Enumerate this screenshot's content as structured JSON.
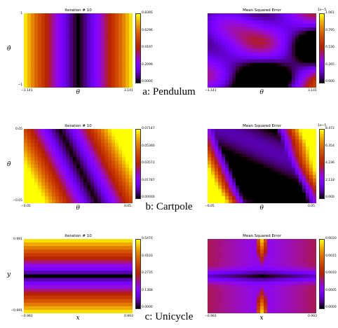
{
  "rows": [
    {
      "caption": "a: Pendulum",
      "ylabel": "θ̇",
      "xlabel": "θ",
      "left": {
        "title": "Iteration # 10",
        "xticks": [
          "−3.141",
          "3.141"
        ],
        "yticks": [
          "1",
          "−1"
        ],
        "cbar_ticks": [
          "0.8395",
          "0.6296",
          "0.4197",
          "0.2099",
          "0.0000"
        ]
      },
      "right": {
        "title": "Mean Squared Error",
        "xticks": [
          "−3.141",
          "3.141"
        ],
        "cbar_offset": "1e−5",
        "cbar_ticks": [
          "1.061",
          "0.795",
          "0.530",
          "0.265",
          "0.000"
        ]
      }
    },
    {
      "caption": "b: Cartpole",
      "ylabel": "θ̇",
      "xlabel": "θ",
      "left": {
        "title": "Iteration # 10",
        "xticks": [
          "−0.05",
          "0.05"
        ],
        "yticks": [
          "0.05",
          "−0.05"
        ],
        "cbar_ticks": [
          "0.07147",
          "0.05360",
          "0.03573",
          "0.01787",
          "0.00000"
        ]
      },
      "right": {
        "title": "Mean Squared Error",
        "xticks": [
          "−0.05",
          "0.05"
        ],
        "cbar_offset": "1e−5",
        "cbar_ticks": [
          "8.472",
          "6.354",
          "4.236",
          "2.118",
          "0.000"
        ]
      }
    },
    {
      "caption": "c: Unicycle",
      "ylabel": "y",
      "xlabel": "x",
      "left": {
        "title": "Iteration # 10",
        "xticks": [
          "−0.993",
          "0.993"
        ],
        "yticks": [
          "0.991",
          "−0.991"
        ],
        "cbar_ticks": [
          "0.5470",
          "0.4103",
          "0.2735",
          "0.1368",
          "0.0000"
        ]
      },
      "right": {
        "title": "Mean Squared Error",
        "xticks": [
          "−0.993",
          "0.993"
        ],
        "cbar_ticks": [
          "0.0020",
          "0.0015",
          "0.0010",
          "0.0005",
          "0.0000"
        ]
      }
    }
  ],
  "chart_data": [
    {
      "type": "heatmap",
      "title": "Iteration # 10",
      "xlabel": "θ",
      "ylabel": "θ̇",
      "xlim": [
        -3.141,
        3.141
      ],
      "ylim": [
        -1,
        1
      ],
      "colorbar_range": [
        0.0,
        0.8395
      ],
      "colormap": "gnuplot",
      "pattern": "value depends on θ, minimum near θ=0"
    },
    {
      "type": "heatmap",
      "title": "Mean Squared Error",
      "xlabel": "θ",
      "xlim": [
        -3.141,
        3.141
      ],
      "colorbar_range": [
        0.0,
        1.061e-05
      ],
      "colormap": "gnuplot"
    },
    {
      "type": "heatmap",
      "title": "Iteration # 10",
      "xlabel": "θ",
      "ylabel": "θ̇",
      "xlim": [
        -0.05,
        0.05
      ],
      "ylim": [
        -0.05,
        0.05
      ],
      "colorbar_range": [
        0.0,
        0.07147
      ],
      "colormap": "gnuplot",
      "pattern": "diagonal bands, minimum along center diagonal"
    },
    {
      "type": "heatmap",
      "title": "Mean Squared Error",
      "xlabel": "θ",
      "xlim": [
        -0.05,
        0.05
      ],
      "colorbar_range": [
        0.0,
        8.472e-05
      ],
      "colormap": "gnuplot"
    },
    {
      "type": "heatmap",
      "title": "Iteration # 10",
      "xlabel": "x",
      "ylabel": "y",
      "xlim": [
        -0.993,
        0.993
      ],
      "ylim": [
        -0.991,
        0.991
      ],
      "colorbar_range": [
        0.0,
        0.547
      ],
      "colormap": "gnuplot",
      "pattern": "value depends on y, minimum near y=0"
    },
    {
      "type": "heatmap",
      "title": "Mean Squared Error",
      "xlabel": "x",
      "xlim": [
        -0.993,
        0.993
      ],
      "colorbar_range": [
        0.0,
        0.002
      ],
      "colormap": "gnuplot"
    }
  ]
}
